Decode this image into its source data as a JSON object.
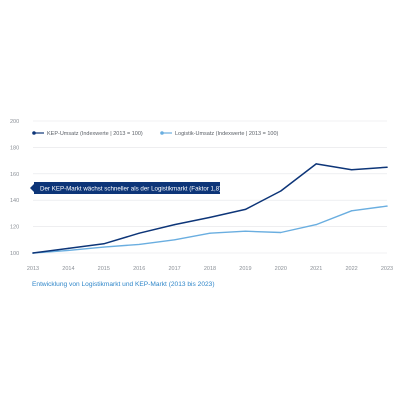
{
  "chart_data": {
    "type": "line",
    "x": [
      "2013",
      "2014",
      "2015",
      "2016",
      "2017",
      "2018",
      "2019",
      "2020",
      "2021",
      "2022",
      "2023"
    ],
    "ylim": [
      100,
      200
    ],
    "y_ticks": [
      "100",
      "120",
      "140",
      "160",
      "180",
      "200"
    ],
    "grid": true,
    "legend_position": "top",
    "series": [
      {
        "name": "KEP-Umsatz (Indexwerte | 2013 = 100)",
        "color": "#0d3578",
        "values": [
          100,
          103.5,
          107,
          115,
          121.5,
          127,
          133,
          147,
          167.5,
          163,
          165
        ]
      },
      {
        "name": "Logistik-Umsatz (Indexwerte | 2013 = 100)",
        "color": "#6aaee0",
        "values": [
          100,
          102,
          104.5,
          106.5,
          110,
          115,
          116.5,
          115.5,
          121.5,
          132,
          135.5
        ]
      }
    ],
    "annotation": "Der KEP-Markt wächst schneller als der Logistikmarkt (Faktor 1,8)"
  },
  "caption": "Entwicklung von Logistikmarkt und KEP-Markt (2013 bis 2023)"
}
